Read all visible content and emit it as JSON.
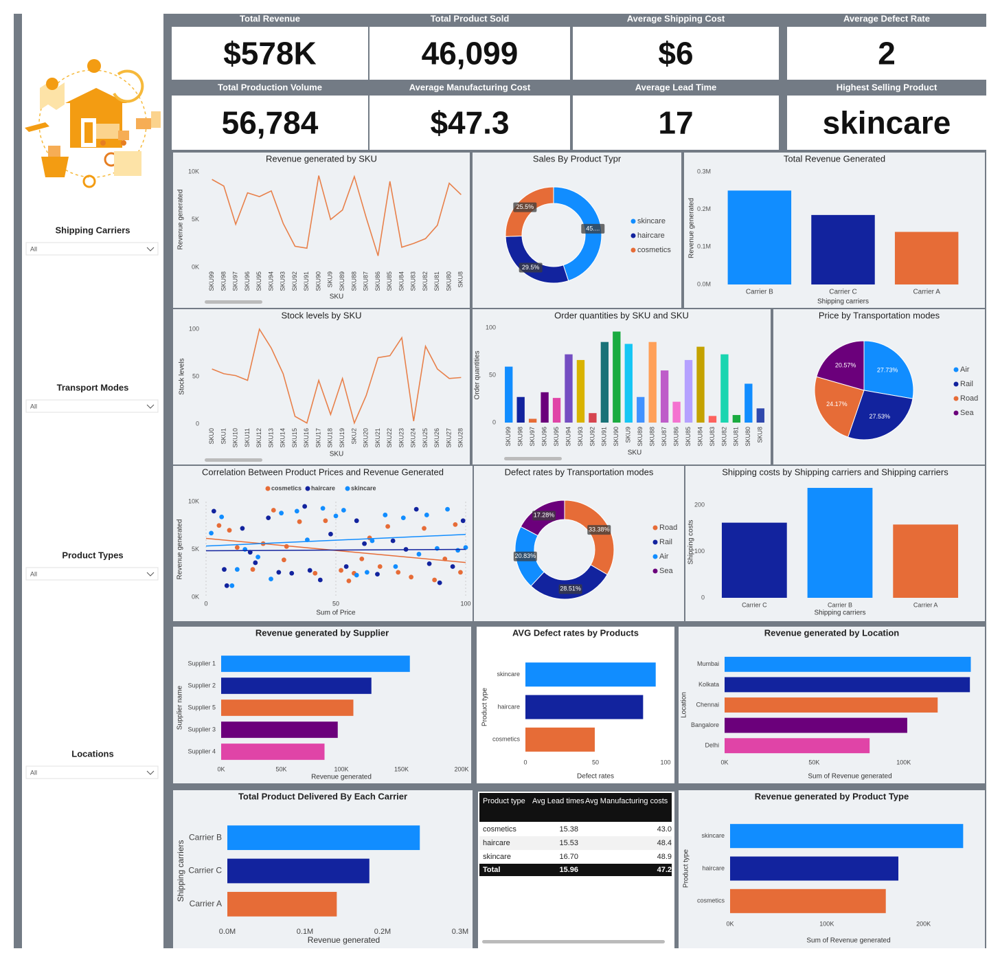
{
  "kpis": [
    {
      "title": "Total Revenue",
      "value": "$578K"
    },
    {
      "title": "Total Product Sold",
      "value": "46,099"
    },
    {
      "title": "Average Shipping Cost",
      "value": "$6"
    },
    {
      "title": "Average Defect Rate",
      "value": "2"
    },
    {
      "title": "Total Production Volume",
      "value": "56,784"
    },
    {
      "title": "Average Manufacturing Cost",
      "value": "$47.3"
    },
    {
      "title": "Average Lead Time",
      "value": "17"
    },
    {
      "title": "Highest Selling Product",
      "value": "skincare"
    }
  ],
  "filters": [
    {
      "label": "Shipping Carriers",
      "value": "All"
    },
    {
      "label": "Transport Modes",
      "value": "All"
    },
    {
      "label": "Product Types",
      "value": "All"
    },
    {
      "label": "Locations",
      "value": "All"
    }
  ],
  "chart_data": [
    {
      "type": "line",
      "title": "Revenue generated by SKU",
      "x_label": "SKU",
      "y_label": "Revenue generated",
      "color": "#e8804a",
      "categories": [
        "SKU99",
        "SKU98",
        "SKU97",
        "SKU96",
        "SKU95",
        "SKU94",
        "SKU93",
        "SKU92",
        "SKU91",
        "SKU90",
        "SKU9",
        "SKU89",
        "SKU88",
        "SKU87",
        "SKU86",
        "SKU85",
        "SKU84",
        "SKU83",
        "SKU82",
        "SKU81",
        "SKU80",
        "SKU8"
      ],
      "values": [
        9200,
        8500,
        4500,
        7800,
        7400,
        8000,
        4600,
        2200,
        2000,
        9600,
        5000,
        6000,
        9500,
        5200,
        1200,
        9000,
        2100,
        2500,
        3000,
        4400,
        8800,
        7600
      ],
      "ylim": [
        0,
        10000
      ],
      "yticks": [
        {
          "value": 0,
          "label": "0K"
        },
        {
          "value": 5000,
          "label": "5K"
        },
        {
          "value": 10000,
          "label": "10K"
        }
      ]
    },
    {
      "type": "donut",
      "title": "Sales By Product Typr",
      "categories": [
        "skincare",
        "haircare",
        "cosmetics"
      ],
      "values": [
        45,
        29.5,
        25.5
      ],
      "value_labels": [
        "45....",
        "29.5%",
        "25.5%"
      ],
      "colors": [
        "#118dff",
        "#12239e",
        "#e66c37"
      ]
    },
    {
      "type": "bar",
      "title": "Total Revenue Generated",
      "x_label": "Shipping carriers",
      "y_label": "Revenue generated",
      "categories": [
        "Carrier B",
        "Carrier C",
        "Carrier A"
      ],
      "values": [
        250000,
        185000,
        140000
      ],
      "colors": [
        "#118dff",
        "#12239e",
        "#e66c37"
      ],
      "ylim": [
        0,
        300000
      ],
      "yticks": [
        {
          "value": 0,
          "label": "0.0M"
        },
        {
          "value": 100000,
          "label": "0.1M"
        },
        {
          "value": 200000,
          "label": "0.2M"
        },
        {
          "value": 300000,
          "label": "0.3M"
        }
      ]
    },
    {
      "type": "line",
      "title": "Stock levels by SKU",
      "x_label": "SKU",
      "y_label": "Stock levels",
      "color": "#e8804a",
      "categories": [
        "SKU0",
        "SKU1",
        "SKU10",
        "SKU11",
        "SKU12",
        "SKU13",
        "SKU14",
        "SKU15",
        "SKU16",
        "SKU17",
        "SKU18",
        "SKU19",
        "SKU2",
        "SKU20",
        "SKU21",
        "SKU22",
        "SKU23",
        "SKU24",
        "SKU25",
        "SKU26",
        "SKU27",
        "SKU28"
      ],
      "values": [
        58,
        53,
        51,
        46,
        100,
        80,
        53,
        8,
        1,
        46,
        10,
        48,
        1,
        30,
        70,
        72,
        91,
        3,
        82,
        58,
        48,
        49
      ],
      "ylim": [
        0,
        100
      ],
      "yticks": [
        0,
        50,
        100
      ]
    },
    {
      "type": "bar",
      "title": "Order quantities by SKU and SKU",
      "x_label": "SKU",
      "y_label": "Order quantities",
      "small": true,
      "categories": [
        "SKU99",
        "SKU98",
        "SKU97",
        "SKU96",
        "SKU95",
        "SKU94",
        "SKU93",
        "SKU92",
        "SKU91",
        "SKU90",
        "SKU9",
        "SKU89",
        "SKU88",
        "SKU87",
        "SKU86",
        "SKU85",
        "SKU84",
        "SKU83",
        "SKU82",
        "SKU81",
        "SKU80",
        "SKU8"
      ],
      "values": [
        59,
        27,
        4,
        32,
        26,
        72,
        66,
        10,
        85,
        96,
        83,
        27,
        85,
        55,
        22,
        66,
        80,
        7,
        72,
        8,
        41,
        15
      ],
      "colors": [
        "#118dff",
        "#12239e",
        "#e66c37",
        "#6b007b",
        "#e044a7",
        "#744ec2",
        "#d9b300",
        "#d64550",
        "#197278",
        "#1aab40",
        "#15c6f4",
        "#4092ff",
        "#ffa058",
        "#be5dc9",
        "#f472d0",
        "#b5a1ff",
        "#c4a200",
        "#fd625e",
        "#1ad5b0",
        "#1aab40",
        "#118dff",
        "#3049ad"
      ],
      "ylim": [
        0,
        100
      ],
      "yticks": [
        0,
        50,
        100
      ]
    },
    {
      "type": "pie",
      "title": "Price by Transportation modes",
      "categories": [
        "Air",
        "Rail",
        "Road",
        "Sea"
      ],
      "values": [
        27.73,
        27.53,
        24.17,
        20.57
      ],
      "value_labels": [
        "27.73%",
        "27.53%",
        "24.17%",
        "20.57%"
      ],
      "colors": [
        "#118dff",
        "#12239e",
        "#e66c37",
        "#6b007b"
      ]
    },
    {
      "type": "scatter",
      "title": "Correlation Between Product Prices and Revenue Generated",
      "x_label": "Sum of Price",
      "y_label": "Revenue generated",
      "xlim": [
        0,
        100
      ],
      "xticks": [
        0,
        50,
        100
      ],
      "ylim": [
        0,
        10000
      ],
      "yticks": [
        {
          "value": 0,
          "label": "0K"
        },
        {
          "value": 5000,
          "label": "5K"
        },
        {
          "value": 10000,
          "label": "10K"
        }
      ],
      "series": [
        {
          "name": "cosmetics",
          "color": "#e66c37",
          "x": [
            5,
            9,
            12,
            18,
            22,
            26,
            31,
            36,
            42,
            46,
            52,
            55,
            60,
            63,
            67,
            70,
            74,
            79,
            84,
            88,
            92,
            96,
            98,
            30,
            57
          ],
          "values": [
            7500,
            7000,
            5200,
            2900,
            5600,
            9100,
            5300,
            7900,
            2500,
            8000,
            2800,
            1700,
            4000,
            6200,
            3200,
            7400,
            2600,
            2100,
            7200,
            1800,
            4000,
            7600,
            2600,
            3900,
            2500
          ]
        },
        {
          "name": "haircare",
          "color": "#12239e",
          "x": [
            3,
            7,
            8,
            14,
            19,
            24,
            28,
            33,
            38,
            44,
            48,
            54,
            58,
            61,
            66,
            72,
            77,
            81,
            86,
            90,
            95,
            99,
            40,
            17
          ],
          "values": [
            9000,
            2900,
            1200,
            7200,
            3600,
            8300,
            2600,
            2500,
            9500,
            1800,
            6600,
            3200,
            8000,
            5600,
            2400,
            5900,
            5000,
            9200,
            3500,
            1500,
            3200,
            8000,
            2800,
            4700
          ]
        },
        {
          "name": "skincare",
          "color": "#118dff",
          "x": [
            2,
            6,
            10,
            15,
            20,
            25,
            29,
            35,
            39,
            45,
            50,
            53,
            58,
            64,
            69,
            73,
            76,
            82,
            85,
            89,
            93,
            97,
            100,
            12,
            62
          ],
          "values": [
            6700,
            8400,
            1200,
            5000,
            4200,
            1900,
            8800,
            9000,
            6000,
            9300,
            8500,
            9100,
            2300,
            5900,
            8600,
            3200,
            8300,
            4500,
            8600,
            5100,
            9200,
            4900,
            5200,
            2900,
            2600
          ]
        }
      ]
    },
    {
      "type": "donut",
      "title": "Defect rates by Transportation modes",
      "categories": [
        "Road",
        "Rail",
        "Air",
        "Sea"
      ],
      "values": [
        33.38,
        28.51,
        20.83,
        17.28
      ],
      "value_labels": [
        "33.38%",
        "28.51%",
        "20.83%",
        "17.28%"
      ],
      "colors": [
        "#e66c37",
        "#12239e",
        "#118dff",
        "#6b007b"
      ]
    },
    {
      "type": "bar",
      "title": "Shipping costs by Shipping carriers and Shipping carriers",
      "x_label": "Shipping carriers",
      "y_label": "Shipping costs",
      "small": true,
      "categories": [
        "Carrier C",
        "Carrier B",
        "Carrier A"
      ],
      "values": [
        162,
        237,
        158
      ],
      "colors": [
        "#12239e",
        "#118dff",
        "#e66c37"
      ],
      "ylim": [
        0,
        240
      ],
      "yticks": [
        0,
        100,
        200
      ]
    },
    {
      "type": "hbar",
      "title": "Revenue generated by Supplier",
      "x_label": "Revenue generated",
      "y_label": "Supplier name",
      "categories": [
        "Supplier 1",
        "Supplier 2",
        "Supplier 5",
        "Supplier 3",
        "Supplier 4"
      ],
      "values": [
        157000,
        125000,
        110000,
        97000,
        86000
      ],
      "colors": [
        "#118dff",
        "#12239e",
        "#e66c37",
        "#6b007b",
        "#e044a7"
      ],
      "xlim": [
        0,
        200000
      ],
      "xticks": [
        {
          "value": 0,
          "label": "0K"
        },
        {
          "value": 50000,
          "label": "50K"
        },
        {
          "value": 100000,
          "label": "100K"
        },
        {
          "value": 150000,
          "label": "150K"
        },
        {
          "value": 200000,
          "label": "200K"
        }
      ]
    },
    {
      "type": "hbar",
      "title": "AVG Defect rates by Products",
      "x_label": "Defect rates",
      "y_label": "Product type",
      "categories": [
        "skincare",
        "haircare",
        "cosmetics"
      ],
      "values": [
        93,
        84,
        49.5
      ],
      "colors": [
        "#118dff",
        "#12239e",
        "#e66c37"
      ],
      "xlim": [
        0,
        100
      ],
      "xticks": [
        0,
        50,
        100
      ]
    },
    {
      "type": "hbar",
      "title": "Revenue generated by Location",
      "x_label": "Sum of Revenue generated",
      "y_label": "Location",
      "categories": [
        "Mumbai",
        "Kolkata",
        "Chennai",
        "Bangalore",
        "Delhi"
      ],
      "values": [
        137500,
        137000,
        119000,
        102000,
        81000
      ],
      "colors": [
        "#118dff",
        "#12239e",
        "#e66c37",
        "#6b007b",
        "#e044a7"
      ],
      "xlim": [
        0,
        140000
      ],
      "xticks": [
        {
          "value": 0,
          "label": "0K"
        },
        {
          "value": 50000,
          "label": "50K"
        },
        {
          "value": 100000,
          "label": "100K"
        }
      ]
    },
    {
      "type": "hbar",
      "title": "Total Product Delivered By Each Carrier",
      "x_label": "Revenue generated",
      "y_label": "Shipping carriers",
      "large": true,
      "categories": [
        "Carrier B",
        "Carrier C",
        "Carrier A"
      ],
      "values": [
        248000,
        183000,
        141000
      ],
      "colors": [
        "#118dff",
        "#12239e",
        "#e66c37"
      ],
      "xlim": [
        0,
        300000
      ],
      "xticks": [
        {
          "value": 0,
          "label": "0.0M"
        },
        {
          "value": 100000,
          "label": "0.1M"
        },
        {
          "value": 200000,
          "label": "0.2M"
        },
        {
          "value": 300000,
          "label": "0.3M"
        }
      ]
    },
    {
      "type": "hbar",
      "title": "Revenue generated by Product Type",
      "x_label": "Sum of Revenue generated",
      "y_label": "Product type",
      "categories": [
        "skincare",
        "haircare",
        "cosmetics"
      ],
      "values": [
        241000,
        174000,
        161000
      ],
      "colors": [
        "#118dff",
        "#12239e",
        "#e66c37"
      ],
      "xlim": [
        0,
        245000
      ],
      "xticks": [
        {
          "value": 0,
          "label": "0K"
        },
        {
          "value": 100000,
          "label": "100K"
        },
        {
          "value": 200000,
          "label": "200K"
        }
      ]
    }
  ],
  "table": {
    "header": [
      "Product type",
      "Avg Lead times",
      "Avg Manufacturing costs"
    ],
    "rows": [
      [
        "cosmetics",
        "15.38",
        "43.0"
      ],
      [
        "haircare",
        "15.53",
        "48.4"
      ],
      [
        "skincare",
        "16.70",
        "48.9"
      ]
    ],
    "total": [
      "Total",
      "15.96",
      "47.2"
    ]
  }
}
